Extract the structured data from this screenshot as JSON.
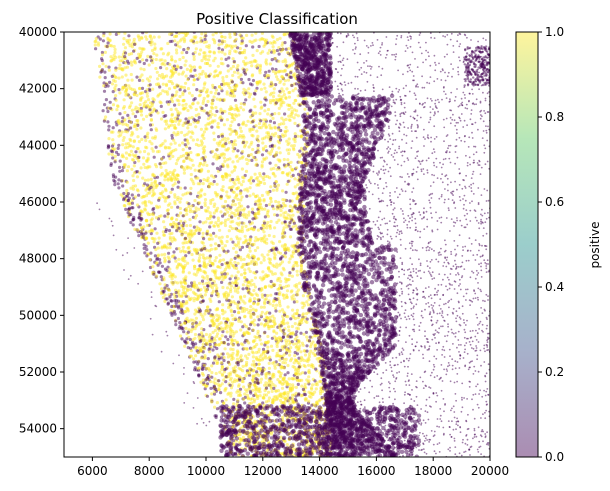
{
  "chart_data": {
    "type": "scatter",
    "title": "Positive Classification",
    "xlabel": "",
    "ylabel": "",
    "xlim": [
      5000,
      20000
    ],
    "ylim": [
      55000,
      40000
    ],
    "y_inverted": true,
    "x_ticks": [
      "6000",
      "8000",
      "10000",
      "12000",
      "14000",
      "16000",
      "18000",
      "20000"
    ],
    "x_tick_values": [
      6000,
      8000,
      10000,
      12000,
      14000,
      16000,
      18000,
      20000
    ],
    "y_ticks": [
      "40000",
      "42000",
      "44000",
      "46000",
      "48000",
      "50000",
      "52000",
      "54000"
    ],
    "y_tick_values": [
      40000,
      42000,
      44000,
      46000,
      48000,
      50000,
      52000,
      54000
    ],
    "grid": false,
    "colormap": "viridis",
    "alpha": 0.5,
    "colorbar": {
      "label": "positive",
      "range": [
        0.0,
        1.0
      ],
      "ticks": [
        "0.0",
        "0.2",
        "0.4",
        "0.6",
        "0.8",
        "1.0"
      ],
      "tick_values": [
        0.0,
        0.2,
        0.4,
        0.6,
        0.8,
        1.0
      ]
    },
    "series": [
      {
        "name": "",
        "value": 1.0,
        "color": "#fde725",
        "region": "tissue band from x about 6000 to 14000, left edge slanting from x 6000 at y 40000 to x 11000 at y 55000"
      },
      {
        "name": "",
        "value": 0.0,
        "color": "#440154",
        "region": "dense band from x about 13000 to 16500 plus sparse cells to x 20000"
      }
    ]
  }
}
